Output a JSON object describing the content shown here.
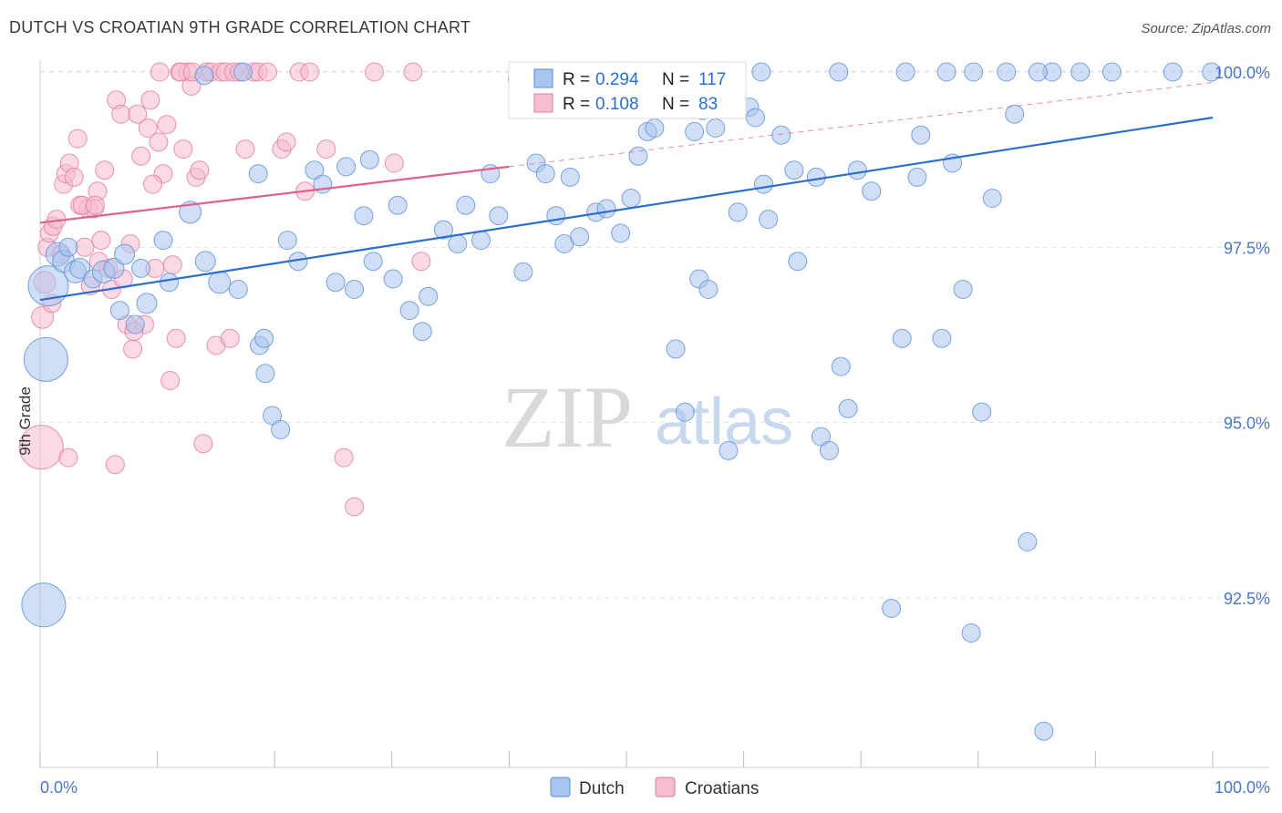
{
  "header": {
    "title": "DUTCH VS CROATIAN 9TH GRADE CORRELATION CHART",
    "source": "Source: ZipAtlas.com"
  },
  "watermark": {
    "zip": "ZIP",
    "atlas": "atlas"
  },
  "colors": {
    "dutch_fill": "#a9c5ee",
    "dutch_stroke": "#5b8fd8",
    "dutch_line": "#2a6fd0",
    "croatian_fill": "#f7bcd0",
    "croatian_stroke": "#e07aa0",
    "croatian_line": "#e0608e",
    "tick_text": "#4a78c8",
    "grid": "#e3e3e3"
  },
  "legend_box": {
    "dutch": {
      "r_label": "R =",
      "r_value": "0.294",
      "n_label": "N =",
      "n_value": "117"
    },
    "croatian": {
      "r_label": "R =",
      "r_value": "0.108",
      "n_label": "N =",
      "n_value": "83"
    }
  },
  "chart_data": {
    "type": "scatter",
    "title": "DUTCH VS CROATIAN 9TH GRADE CORRELATION CHART",
    "xlabel": "",
    "ylabel": "9th Grade",
    "xlim": [
      0,
      100
    ],
    "ylim": [
      90.3,
      100.3
    ],
    "x_tick_labels": [
      "0.0%",
      "100.0%"
    ],
    "y_ticks": [
      92.5,
      95.0,
      97.5,
      100.0
    ],
    "y_tick_labels": [
      "92.5%",
      "95.0%",
      "97.5%",
      "100.0%"
    ],
    "grid": true,
    "legend_position": "bottom-center",
    "series": [
      {
        "name": "Dutch",
        "r": 0.294,
        "n": 117,
        "trend": {
          "x": [
            0,
            100
          ],
          "y": [
            96.75,
            99.35
          ],
          "style": "solid"
        },
        "points": [
          [
            0.3,
            92.4,
            24
          ],
          [
            0.5,
            95.9,
            24
          ],
          [
            0.7,
            96.95,
            22
          ],
          [
            1.5,
            97.4,
            13
          ],
          [
            2.0,
            97.3,
            12
          ],
          [
            2.4,
            97.5,
            10
          ],
          [
            3.0,
            97.15,
            12
          ],
          [
            3.4,
            97.2,
            11
          ],
          [
            4.5,
            97.05,
            10
          ],
          [
            5.4,
            97.15,
            12
          ],
          [
            6.3,
            97.2,
            11
          ],
          [
            6.8,
            96.6,
            10
          ],
          [
            7.2,
            97.4,
            11
          ],
          [
            8.1,
            96.4,
            10
          ],
          [
            8.6,
            97.2,
            10
          ],
          [
            9.1,
            96.7,
            11
          ],
          [
            10.5,
            97.6,
            10
          ],
          [
            11.0,
            97.0,
            10
          ],
          [
            12.8,
            98.0,
            12
          ],
          [
            14.1,
            97.3,
            11
          ],
          [
            15.3,
            97.0,
            12
          ],
          [
            16.9,
            96.9,
            10
          ],
          [
            18.6,
            98.55,
            10
          ],
          [
            18.7,
            96.1,
            10
          ],
          [
            19.1,
            96.2,
            10
          ],
          [
            19.2,
            95.7,
            10
          ],
          [
            19.8,
            95.1,
            10
          ],
          [
            20.5,
            94.9,
            10
          ],
          [
            21.1,
            97.6,
            10
          ],
          [
            22.0,
            97.3,
            10
          ],
          [
            23.4,
            98.6,
            10
          ],
          [
            24.1,
            98.4,
            10
          ],
          [
            25.2,
            97.0,
            10
          ],
          [
            26.1,
            98.65,
            10
          ],
          [
            26.8,
            96.9,
            10
          ],
          [
            27.6,
            97.95,
            10
          ],
          [
            28.1,
            98.75,
            10
          ],
          [
            28.4,
            97.3,
            10
          ],
          [
            30.5,
            98.1,
            10
          ],
          [
            30.1,
            97.05,
            10
          ],
          [
            31.5,
            96.6,
            10
          ],
          [
            32.6,
            96.3,
            10
          ],
          [
            33.1,
            96.8,
            10
          ],
          [
            34.4,
            97.75,
            10
          ],
          [
            35.6,
            97.55,
            10
          ],
          [
            36.3,
            98.1,
            10
          ],
          [
            37.6,
            97.6,
            10
          ],
          [
            38.4,
            98.55,
            10
          ],
          [
            39.1,
            97.95,
            10
          ],
          [
            40.7,
            99.9,
            10
          ],
          [
            41.2,
            97.15,
            10
          ],
          [
            42.3,
            98.7,
            10
          ],
          [
            43.1,
            98.55,
            10
          ],
          [
            44.0,
            97.95,
            10
          ],
          [
            44.7,
            97.55,
            10
          ],
          [
            45.2,
            98.5,
            10
          ],
          [
            46.0,
            97.65,
            10
          ],
          [
            47.4,
            98.0,
            10
          ],
          [
            48.3,
            98.05,
            10
          ],
          [
            49.5,
            97.7,
            10
          ],
          [
            50.4,
            98.2,
            10
          ],
          [
            51.0,
            98.8,
            10
          ],
          [
            51.8,
            99.15,
            10
          ],
          [
            52.4,
            99.2,
            10
          ],
          [
            53.7,
            99.55,
            10
          ],
          [
            54.2,
            96.05,
            10
          ],
          [
            55.0,
            95.15,
            10
          ],
          [
            55.8,
            99.15,
            10
          ],
          [
            56.2,
            97.05,
            10
          ],
          [
            57.0,
            96.9,
            10
          ],
          [
            57.6,
            99.2,
            10
          ],
          [
            58.7,
            94.6,
            10
          ],
          [
            59.5,
            98.0,
            10
          ],
          [
            60.5,
            99.5,
            10
          ],
          [
            61.0,
            99.35,
            10
          ],
          [
            61.7,
            98.4,
            10
          ],
          [
            62.1,
            97.9,
            10
          ],
          [
            63.2,
            99.1,
            10
          ],
          [
            64.3,
            98.6,
            10
          ],
          [
            64.6,
            97.3,
            10
          ],
          [
            66.2,
            98.5,
            10
          ],
          [
            66.6,
            94.8,
            10
          ],
          [
            67.3,
            94.6,
            10
          ],
          [
            68.3,
            95.8,
            10
          ],
          [
            68.9,
            95.2,
            10
          ],
          [
            69.7,
            98.6,
            10
          ],
          [
            70.9,
            98.3,
            10
          ],
          [
            72.6,
            92.35,
            10
          ],
          [
            73.5,
            96.2,
            10
          ],
          [
            74.8,
            98.5,
            10
          ],
          [
            75.1,
            99.1,
            10
          ],
          [
            76.9,
            96.2,
            10
          ],
          [
            77.8,
            98.7,
            10
          ],
          [
            78.7,
            96.9,
            10
          ],
          [
            79.4,
            92.0,
            10
          ],
          [
            80.3,
            95.15,
            10
          ],
          [
            81.2,
            98.2,
            10
          ],
          [
            82.4,
            100.0,
            10
          ],
          [
            83.1,
            99.4,
            10
          ],
          [
            84.2,
            93.3,
            10
          ],
          [
            85.6,
            90.6,
            10
          ],
          [
            86.3,
            100.0,
            10
          ],
          [
            88.7,
            100.0,
            10
          ],
          [
            91.4,
            100.0,
            10
          ],
          [
            96.6,
            100.0,
            10
          ],
          [
            99.9,
            100.0,
            10
          ],
          [
            14.0,
            99.95,
            10
          ],
          [
            17.3,
            100.0,
            10
          ],
          [
            55.5,
            100.0,
            10
          ],
          [
            58.9,
            100.0,
            10
          ],
          [
            61.5,
            100.0,
            10
          ],
          [
            68.1,
            100.0,
            10
          ],
          [
            73.8,
            100.0,
            10
          ],
          [
            77.3,
            100.0,
            10
          ],
          [
            79.6,
            100.0,
            10
          ],
          [
            85.1,
            100.0,
            10
          ],
          [
            56.5,
            99.45,
            10
          ]
        ]
      },
      {
        "name": "Croatians",
        "r": 0.108,
        "n": 83,
        "trend": {
          "x": [
            0,
            40
          ],
          "y": [
            97.85,
            98.65
          ],
          "style": "solid",
          "extension": {
            "x": [
              40,
              100
            ],
            "y": [
              98.65,
              99.85
            ],
            "style": "dashed"
          }
        },
        "points": [
          [
            0.1,
            94.65,
            24
          ],
          [
            0.2,
            96.5,
            12
          ],
          [
            0.4,
            97.0,
            12
          ],
          [
            0.6,
            97.5,
            10
          ],
          [
            0.8,
            97.7,
            10
          ],
          [
            1.1,
            97.8,
            10
          ],
          [
            1.4,
            97.9,
            10
          ],
          [
            1.8,
            97.4,
            10
          ],
          [
            2.0,
            98.4,
            10
          ],
          [
            2.2,
            98.55,
            10
          ],
          [
            2.5,
            98.7,
            10
          ],
          [
            2.9,
            98.5,
            10
          ],
          [
            3.2,
            99.05,
            10
          ],
          [
            3.4,
            98.1,
            10
          ],
          [
            3.8,
            97.5,
            10
          ],
          [
            4.1,
            98.05,
            10
          ],
          [
            4.3,
            96.95,
            10
          ],
          [
            4.6,
            98.05,
            10
          ],
          [
            4.9,
            98.3,
            10
          ],
          [
            5.2,
            97.6,
            10
          ],
          [
            5.5,
            98.6,
            10
          ],
          [
            5.8,
            97.2,
            10
          ],
          [
            6.1,
            96.9,
            10
          ],
          [
            6.5,
            99.6,
            10
          ],
          [
            6.9,
            99.4,
            10
          ],
          [
            7.1,
            97.05,
            10
          ],
          [
            7.4,
            96.4,
            10
          ],
          [
            7.7,
            97.55,
            10
          ],
          [
            7.9,
            96.05,
            10
          ],
          [
            8.3,
            99.4,
            10
          ],
          [
            8.6,
            98.8,
            10
          ],
          [
            8.9,
            96.4,
            10
          ],
          [
            9.2,
            99.2,
            10
          ],
          [
            9.4,
            99.6,
            10
          ],
          [
            9.8,
            97.2,
            10
          ],
          [
            10.1,
            99.0,
            10
          ],
          [
            10.5,
            98.55,
            10
          ],
          [
            10.8,
            99.25,
            10
          ],
          [
            11.1,
            95.6,
            10
          ],
          [
            11.3,
            97.25,
            10
          ],
          [
            11.6,
            96.2,
            10
          ],
          [
            11.9,
            100.0,
            10
          ],
          [
            12.2,
            98.9,
            10
          ],
          [
            12.6,
            100.0,
            10
          ],
          [
            12.9,
            99.8,
            10
          ],
          [
            13.3,
            98.5,
            10
          ],
          [
            13.6,
            98.6,
            10
          ],
          [
            13.9,
            94.7,
            10
          ],
          [
            14.2,
            100.0,
            10
          ],
          [
            14.6,
            100.0,
            10
          ],
          [
            15.0,
            96.1,
            10
          ],
          [
            15.4,
            100.0,
            10
          ],
          [
            15.8,
            100.0,
            10
          ],
          [
            16.2,
            96.2,
            10
          ],
          [
            17.5,
            98.9,
            10
          ],
          [
            18.2,
            100.0,
            10
          ],
          [
            18.6,
            100.0,
            10
          ],
          [
            19.4,
            100.0,
            10
          ],
          [
            20.6,
            98.9,
            10
          ],
          [
            21.0,
            99.0,
            10
          ],
          [
            22.1,
            100.0,
            10
          ],
          [
            22.6,
            98.3,
            10
          ],
          [
            23.0,
            100.0,
            10
          ],
          [
            24.4,
            98.9,
            10
          ],
          [
            25.9,
            94.5,
            10
          ],
          [
            26.8,
            93.8,
            10
          ],
          [
            28.5,
            100.0,
            10
          ],
          [
            30.2,
            98.7,
            10
          ],
          [
            31.8,
            100.0,
            10
          ],
          [
            2.4,
            94.5,
            10
          ],
          [
            6.4,
            94.4,
            10
          ],
          [
            32.5,
            97.3,
            10
          ],
          [
            3.6,
            98.1,
            10
          ],
          [
            1.0,
            96.7,
            10
          ],
          [
            5.0,
            97.3,
            10
          ],
          [
            8.0,
            96.3,
            10
          ],
          [
            9.6,
            98.4,
            10
          ],
          [
            10.2,
            100.0,
            10
          ],
          [
            12.0,
            100.0,
            10
          ],
          [
            13.0,
            100.0,
            10
          ],
          [
            16.5,
            100.0,
            10
          ],
          [
            17.0,
            100.0,
            10
          ],
          [
            4.7,
            98.1,
            10
          ]
        ]
      }
    ]
  },
  "bottom_legend": {
    "dutch": "Dutch",
    "croatians": "Croatians"
  }
}
